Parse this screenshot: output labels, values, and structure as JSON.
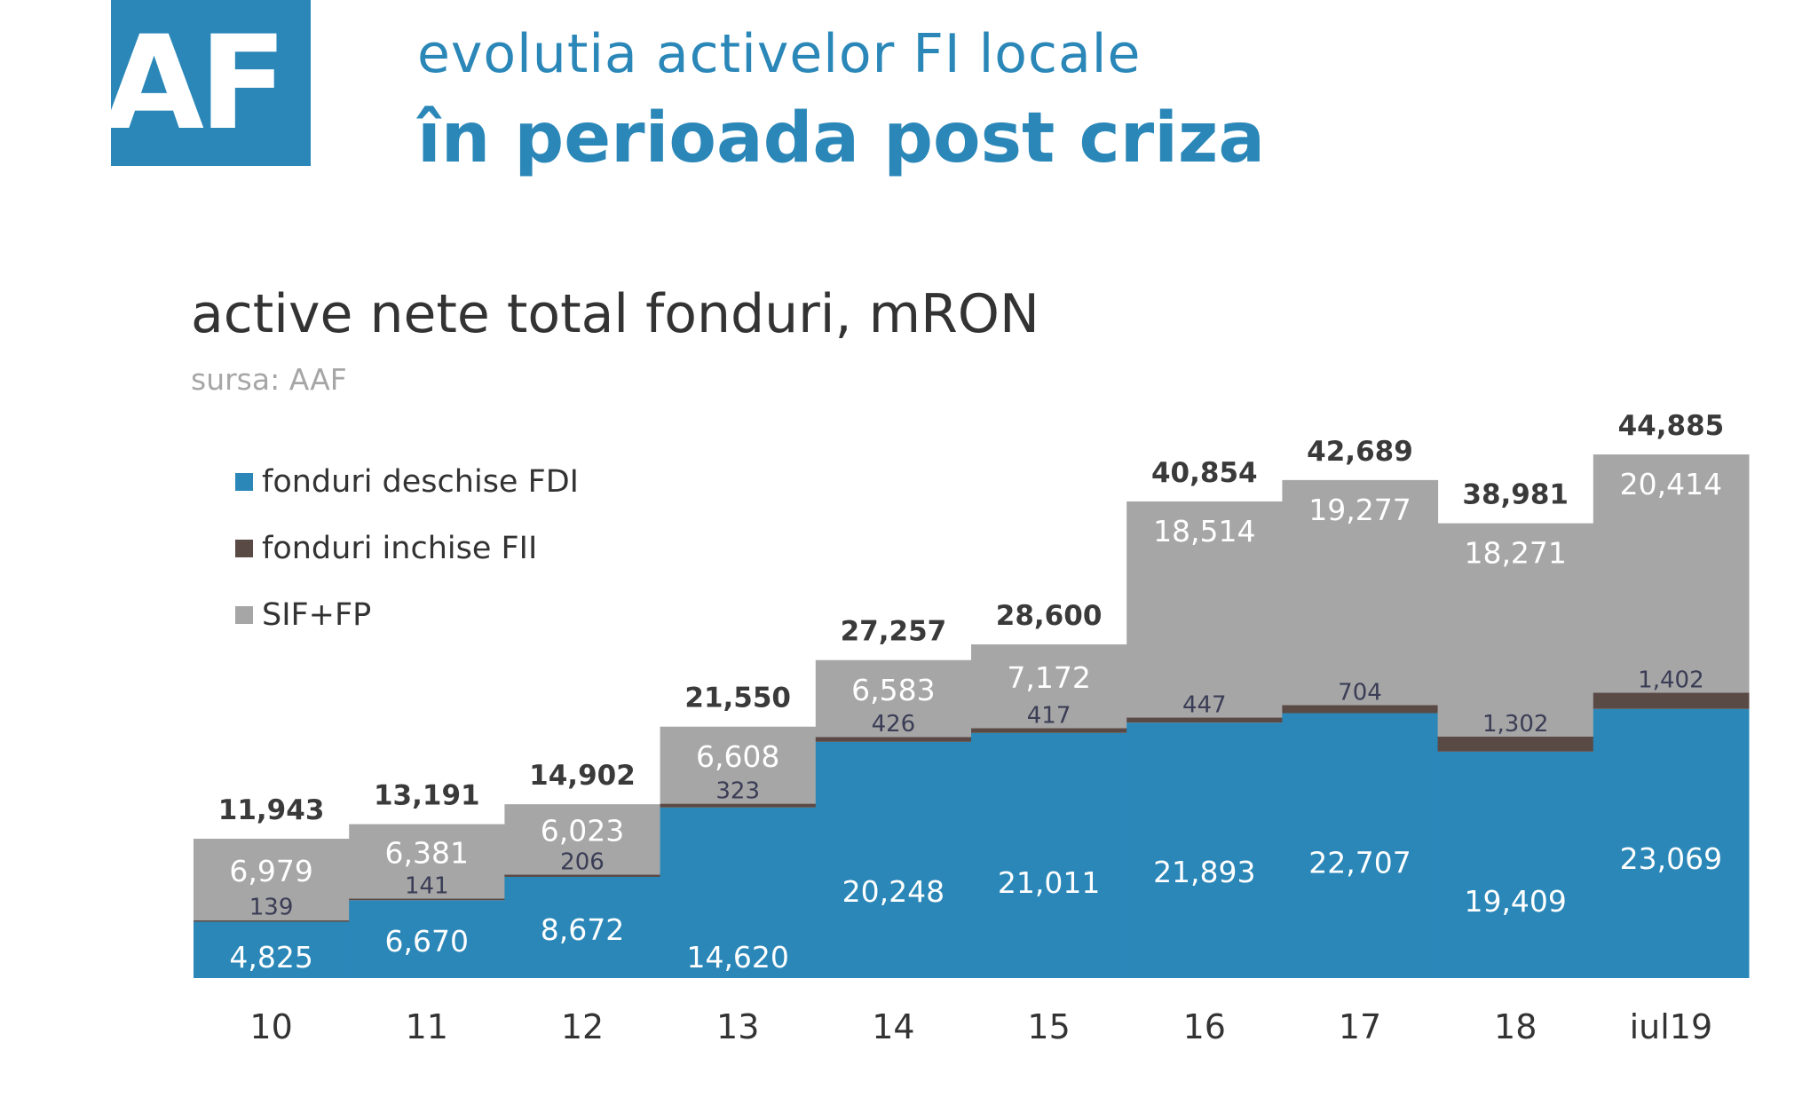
{
  "logo": {
    "text": "AAF",
    "color": "#2a87b8"
  },
  "header": {
    "title_line1": "evolutia activelor FI locale",
    "title_line2": "în perioada post criza",
    "accent": "#2a87b8"
  },
  "chart_data": {
    "type": "bar",
    "stacked": true,
    "title": "active nete total fonduri, mRON",
    "subtitle": "sursa: AAF",
    "categories": [
      "10",
      "11",
      "12",
      "13",
      "14",
      "15",
      "16",
      "17",
      "18",
      "iul19"
    ],
    "series": [
      {
        "name": "fonduri deschise FDI",
        "color": "#2a87b8",
        "values": [
          4825,
          6670,
          8672,
          14620,
          20248,
          21011,
          21893,
          22707,
          19409,
          23069
        ]
      },
      {
        "name": "fonduri inchise FII",
        "color": "#5a4a46",
        "values": [
          139,
          141,
          206,
          323,
          426,
          417,
          447,
          704,
          1302,
          1402
        ]
      },
      {
        "name": "SIF+FP",
        "color": "#a6a6a6",
        "values": [
          6979,
          6381,
          6023,
          6608,
          6583,
          7172,
          18514,
          19277,
          18271,
          20414
        ]
      }
    ],
    "totals": [
      11943,
      13191,
      14902,
      21550,
      27257,
      28600,
      40854,
      42689,
      38981,
      44885
    ],
    "legend_position": "top-left",
    "grid": false
  }
}
